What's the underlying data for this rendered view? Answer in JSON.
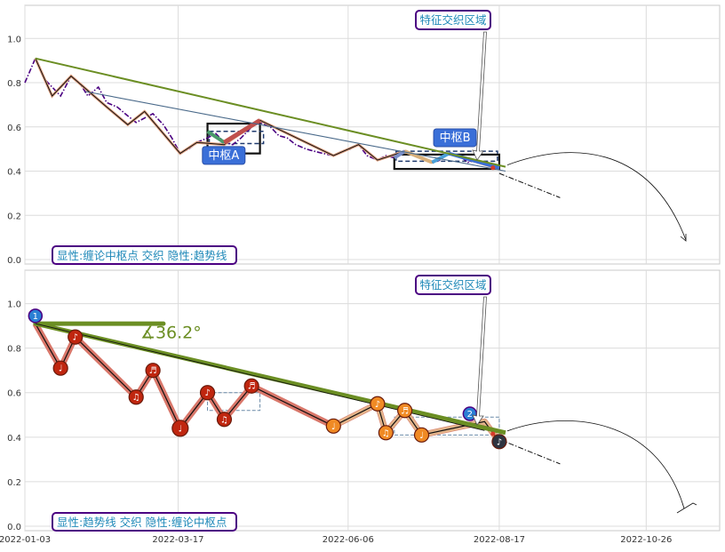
{
  "chart_data": [
    {
      "type": "line",
      "panel": "top",
      "x_range": [
        "2022-01-03",
        "2022-11-30"
      ],
      "ylim": [
        -0.02,
        1.15
      ],
      "y_ticks": [
        0.0,
        0.2,
        0.4,
        0.6,
        0.8,
        1.0
      ],
      "grid": true,
      "annotation_top": "特征交织区域",
      "legend_text": "显性:缠论中枢点 交织 隐性:趋势线",
      "legend_placement": "bottom-left",
      "zhongshu_labels": [
        "中枢A",
        "中枢B"
      ],
      "series": [
        {
          "role": "price",
          "x": [
            "2022-01-03",
            "2022-01-08",
            "2022-01-12",
            "2022-01-16",
            "2022-01-20",
            "2022-01-25",
            "2022-01-29",
            "2022-02-02",
            "2022-02-07",
            "2022-02-11",
            "2022-02-16",
            "2022-02-21",
            "2022-02-25",
            "2022-03-01",
            "2022-03-05",
            "2022-03-10",
            "2022-03-14",
            "2022-03-18",
            "2022-03-22",
            "2022-03-26",
            "2022-03-31",
            "2022-04-04",
            "2022-04-08",
            "2022-04-12",
            "2022-04-16",
            "2022-04-21",
            "2022-04-25",
            "2022-04-30",
            "2022-05-04",
            "2022-05-08",
            "2022-05-12",
            "2022-05-17",
            "2022-05-21",
            "2022-05-25",
            "2022-05-30",
            "2022-06-03",
            "2022-06-07",
            "2022-06-11",
            "2022-06-15",
            "2022-06-20",
            "2022-06-24",
            "2022-06-28",
            "2022-07-03",
            "2022-07-07",
            "2022-07-11",
            "2022-07-16",
            "2022-07-20",
            "2022-07-24",
            "2022-07-29",
            "2022-08-02",
            "2022-08-06",
            "2022-08-10",
            "2022-08-14",
            "2022-08-17"
          ],
          "y": [
            0.8,
            0.91,
            0.82,
            0.78,
            0.74,
            0.83,
            0.8,
            0.74,
            0.78,
            0.71,
            0.69,
            0.65,
            0.62,
            0.64,
            0.66,
            0.61,
            0.55,
            0.48,
            0.5,
            0.53,
            0.55,
            0.57,
            0.53,
            0.52,
            0.55,
            0.6,
            0.62,
            0.6,
            0.56,
            0.55,
            0.52,
            0.5,
            0.49,
            0.48,
            0.47,
            0.49,
            0.5,
            0.52,
            0.47,
            0.45,
            0.47,
            0.46,
            0.49,
            0.48,
            0.46,
            0.44,
            0.45,
            0.48,
            0.47,
            0.44,
            0.45,
            0.43,
            0.42,
            0.41
          ]
        },
        {
          "role": "bi",
          "x": [
            "2022-01-08",
            "2022-01-16",
            "2022-01-25",
            "2022-02-11",
            "2022-02-21",
            "2022-03-01",
            "2022-03-18",
            "2022-03-26",
            "2022-04-08",
            "2022-04-25",
            "2022-05-30",
            "2022-06-11",
            "2022-06-20",
            "2022-07-03",
            "2022-07-16",
            "2022-07-24",
            "2022-08-17"
          ],
          "y": [
            0.91,
            0.74,
            0.83,
            0.69,
            0.61,
            0.67,
            0.48,
            0.53,
            0.52,
            0.63,
            0.47,
            0.52,
            0.45,
            0.49,
            0.44,
            0.48,
            0.41
          ]
        },
        {
          "role": "trend_main",
          "x": [
            "2022-01-08",
            "2022-08-20"
          ],
          "y": [
            0.91,
            0.42
          ]
        },
        {
          "role": "trend_secondary",
          "x": [
            "2022-02-01",
            "2022-08-20"
          ],
          "y": [
            0.76,
            0.4
          ]
        },
        {
          "role": "projection",
          "x": [
            "2022-08-17",
            "2022-09-15"
          ],
          "y": [
            0.39,
            0.28
          ]
        }
      ]
    },
    {
      "type": "line",
      "panel": "bottom",
      "x_range": [
        "2022-01-03",
        "2022-11-30"
      ],
      "ylim": [
        -0.02,
        1.15
      ],
      "y_ticks": [
        0.0,
        0.2,
        0.4,
        0.6,
        0.8,
        1.0
      ],
      "x_ticks": [
        "2022-01-03",
        "2022-03-17",
        "2022-06-06",
        "2022-08-17",
        "2022-10-26"
      ],
      "grid": true,
      "annotation_top": "特征交织区域",
      "legend_text": "显性:趋势线 交织 隐性:缠论中枢点",
      "legend_placement": "bottom-left",
      "angle_label": "∡36.2°",
      "marker_glyphs": [
        "♩",
        "♪",
        "♫",
        "♬"
      ],
      "trend_markers": [
        "1",
        "2"
      ],
      "series": [
        {
          "role": "trend_main",
          "x": [
            "2022-01-08",
            "2022-08-20"
          ],
          "y": [
            0.91,
            0.42
          ]
        },
        {
          "role": "bi",
          "x": [
            "2022-01-08",
            "2022-01-20",
            "2022-01-27",
            "2022-02-25",
            "2022-03-05",
            "2022-03-18",
            "2022-03-31",
            "2022-04-08",
            "2022-04-21",
            "2022-05-30",
            "2022-06-20",
            "2022-06-24",
            "2022-07-03",
            "2022-07-11",
            "2022-08-10",
            "2022-08-17"
          ],
          "y": [
            0.91,
            0.71,
            0.85,
            0.58,
            0.7,
            0.44,
            0.6,
            0.48,
            0.63,
            0.45,
            0.55,
            0.42,
            0.52,
            0.41,
            0.47,
            0.38
          ]
        },
        {
          "role": "markers",
          "x": [
            "2022-01-20",
            "2022-01-27",
            "2022-02-25",
            "2022-03-05",
            "2022-03-18",
            "2022-03-31",
            "2022-04-08",
            "2022-04-21",
            "2022-05-30",
            "2022-06-20",
            "2022-06-24",
            "2022-07-03",
            "2022-07-11",
            "2022-08-17"
          ],
          "y": [
            0.71,
            0.85,
            0.58,
            0.7,
            0.44,
            0.6,
            0.48,
            0.63,
            0.45,
            0.55,
            0.42,
            0.52,
            0.41,
            0.38
          ]
        },
        {
          "role": "projection",
          "x": [
            "2022-08-17",
            "2022-09-15"
          ],
          "y": [
            0.39,
            0.28
          ]
        }
      ]
    }
  ],
  "colors": {
    "grid": "#dcdcdc",
    "axis_text": "#333333",
    "trend_green": "#6b8e23",
    "price_purple": "#4b0082",
    "bi_black": "#111111",
    "zhongshu_box": "#1f3a6e",
    "label_blue": "#3a6fd8",
    "annotation_border": "#4b0082",
    "annotation_text": "#1e88b8",
    "marker_red": "#c0260f",
    "marker_orange": "#f08a24",
    "bi_wide_salmon": "#d9776a",
    "bi_wide_tan": "#e3b48a"
  }
}
